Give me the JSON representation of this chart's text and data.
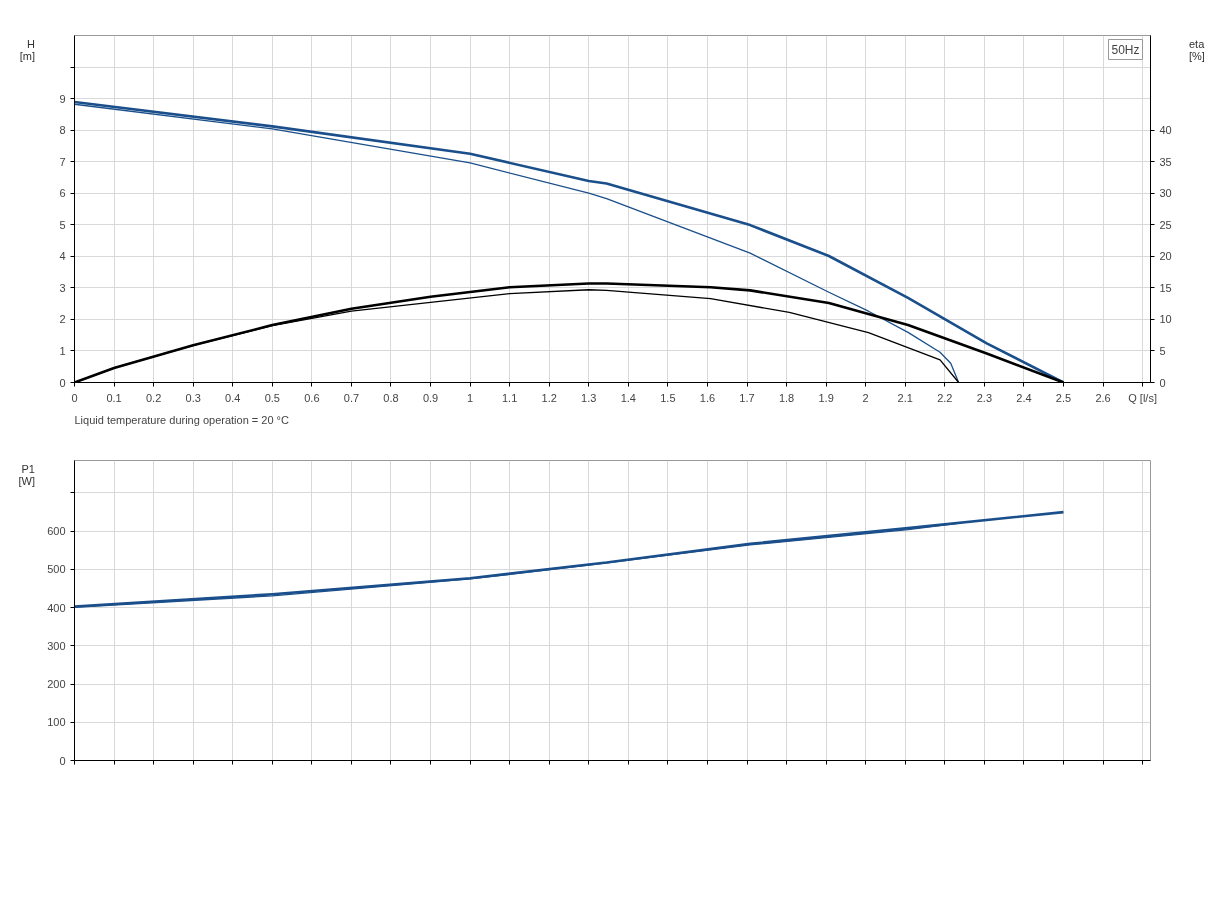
{
  "chart_data": [
    {
      "type": "line",
      "xlabel": "Q [l/s]",
      "ylabel": "H\n[m]",
      "y2label": "eta\n[%]",
      "xlim": [
        0,
        2.72
      ],
      "ylim": [
        0,
        11
      ],
      "y2lim": [
        0,
        55
      ],
      "xticks": [
        0,
        0.1,
        0.2,
        0.3,
        0.4,
        0.5,
        0.6,
        0.7,
        0.8,
        0.9,
        1.0,
        1.1,
        1.2,
        1.3,
        1.4,
        1.5,
        1.6,
        1.7,
        1.8,
        1.9,
        2.0,
        2.1,
        2.2,
        2.3,
        2.4,
        2.5,
        2.6,
        {
          "value": 2.7,
          "label": null
        }
      ],
      "yticks": [
        0,
        1,
        2,
        3,
        4,
        5,
        6,
        7,
        8,
        9,
        {
          "value": 10,
          "label": null
        }
      ],
      "y2ticks": [
        0,
        5,
        10,
        15,
        20,
        25,
        30,
        35,
        40
      ],
      "grid": true,
      "marker": "none",
      "line_style": "solid",
      "annotations": [
        "50Hz",
        "Liquid temperature during operation = 20 °C"
      ],
      "series": [
        {
          "color": "#1a4f8b",
          "x": [
            0,
            0.5,
            1.0,
            1.3,
            1.345,
            1.708,
            1.907,
            2.107,
            2.306,
            2.5
          ],
          "values": [
            8.89,
            8.12,
            7.25,
            6.39,
            6.31,
            4.99,
            4.01,
            2.68,
            1.24,
            0
          ]
        },
        {
          "color": "#1a4f8b",
          "x": [
            0,
            0.5,
            1.0,
            1.3,
            1.345,
            1.708,
            1.907,
            2.007,
            2.107,
            2.188,
            2.215,
            2.235
          ],
          "values": [
            8.82,
            8.04,
            6.96,
            6.0,
            5.83,
            4.1,
            2.86,
            2.26,
            1.59,
            0.96,
            0.61,
            0
          ]
        },
        {
          "color": "#000000",
          "axis": "y2",
          "x": [
            0,
            0.1,
            0.3,
            0.5,
            0.7,
            0.9,
            1.1,
            1.3,
            1.345,
            1.608,
            1.708,
            1.907,
            2.107,
            2.306,
            2.5
          ],
          "values": [
            0,
            2.3,
            5.9,
            9.1,
            11.7,
            13.6,
            15.1,
            15.7,
            15.7,
            15.1,
            14.6,
            12.6,
            9.1,
            4.6,
            0
          ]
        },
        {
          "color": "#000000",
          "axis": "y2",
          "x": [
            0,
            0.1,
            0.3,
            0.5,
            0.7,
            0.9,
            1.1,
            1.3,
            1.345,
            1.608,
            1.807,
            2.007,
            2.188,
            2.235
          ],
          "values": [
            0,
            2.3,
            5.9,
            9.0,
            11.3,
            12.7,
            14.1,
            14.7,
            14.6,
            13.3,
            11.1,
            7.9,
            3.6,
            0
          ]
        }
      ]
    },
    {
      "type": "line",
      "ylabel": "P1\n[W]",
      "xlim": [
        0,
        2.72
      ],
      "ylim": [
        0,
        785
      ],
      "xticks": [
        0,
        0.1,
        0.2,
        0.3,
        0.4,
        0.5,
        0.6,
        0.7,
        0.8,
        0.9,
        1.0,
        1.1,
        1.2,
        1.3,
        1.4,
        1.5,
        1.6,
        1.7,
        1.8,
        1.9,
        2.0,
        2.1,
        2.2,
        2.3,
        2.4,
        2.5,
        2.6,
        2.7
      ],
      "yticks": [
        0,
        100,
        200,
        300,
        400,
        500,
        600,
        {
          "value": 700,
          "label": null
        }
      ],
      "tick_labels": "y",
      "grid": true,
      "marker": "none",
      "line_style": "solid",
      "series": [
        {
          "color": "#1a4f8b",
          "x": [
            0,
            0.5,
            1.0,
            1.3,
            1.345,
            1.708,
            2.107,
            2.5
          ],
          "values": [
            403,
            435,
            477,
            513,
            518,
            567,
            608,
            650
          ]
        },
        {
          "color": "#1a4f8b",
          "x": [
            0,
            0.5,
            1.0,
            1.3,
            1.708,
            2.107,
            2.238
          ],
          "values": [
            401,
            431,
            475,
            511,
            564,
            604,
            621
          ]
        }
      ]
    }
  ]
}
